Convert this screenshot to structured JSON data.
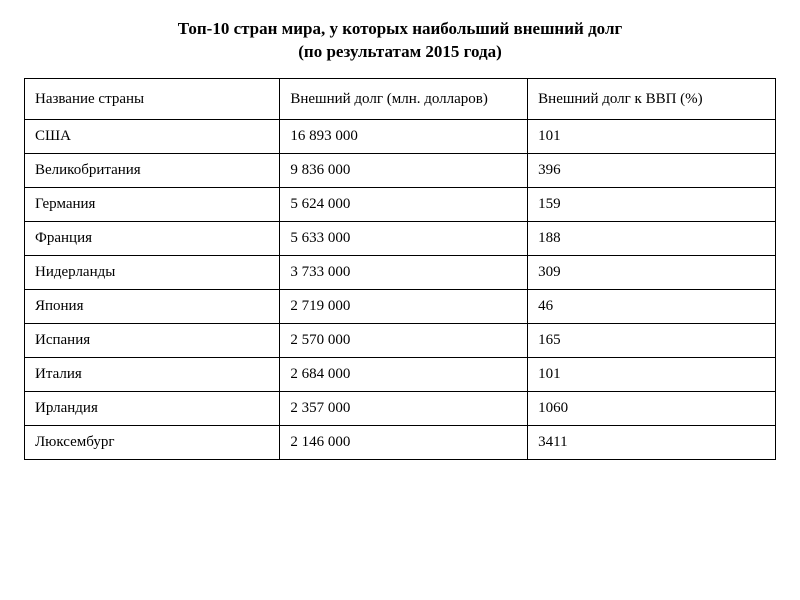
{
  "title": {
    "line1": "Топ-10 стран мира, у которых наибольший внешний долг",
    "line2": "(по результатам 2015 года)"
  },
  "table": {
    "type": "table",
    "background_color": "#ffffff",
    "border_color": "#000000",
    "text_color": "#000000",
    "header_fontsize": 15,
    "cell_fontsize": 15,
    "columns": [
      {
        "key": "country",
        "label": "Название страны",
        "width_pct": 34,
        "align": "left"
      },
      {
        "key": "debt",
        "label": "Внешний долг (млн. долларов)",
        "width_pct": 33,
        "align": "left"
      },
      {
        "key": "gdp",
        "label": "Внешний долг к ВВП (%)",
        "width_pct": 33,
        "align": "left"
      }
    ],
    "rows": [
      {
        "country": "США",
        "debt": "16 893 000",
        "gdp": "101"
      },
      {
        "country": "Великобритания",
        "debt": "9 836 000",
        "gdp": "396"
      },
      {
        "country": "Германия",
        "debt": "5 624 000",
        "gdp": "159"
      },
      {
        "country": "Франция",
        "debt": "5 633 000",
        "gdp": "188"
      },
      {
        "country": "Нидерланды",
        "debt": "3 733 000",
        "gdp": "309"
      },
      {
        "country": "Япония",
        "debt": "2 719 000",
        "gdp": "46"
      },
      {
        "country": "Испания",
        "debt": "2 570 000",
        "gdp": "165"
      },
      {
        "country": "Италия",
        "debt": "2 684 000",
        "gdp": "101"
      },
      {
        "country": "Ирландия",
        "debt": "2 357 000",
        "gdp": "1060"
      },
      {
        "country": "Люксембург",
        "debt": "2 146 000",
        "gdp": "3411"
      }
    ]
  }
}
